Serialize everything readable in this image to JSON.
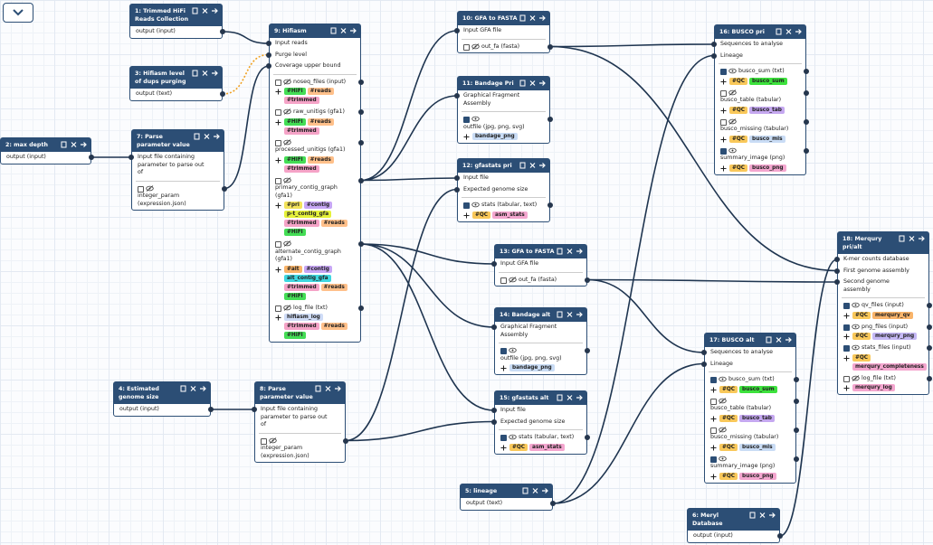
{
  "nodes": [
    {
      "title": "1: Trimmed HiFi Reads Collection",
      "inputs": [],
      "outputs": [
        {
          "label": "output (input)"
        }
      ]
    },
    {
      "title": "2: max depth",
      "inputs": [],
      "outputs": [
        {
          "label": "output (input)"
        }
      ]
    },
    {
      "title": "3: Hifiasm level of dups purging",
      "inputs": [],
      "outputs": [
        {
          "label": "output (text)"
        }
      ]
    },
    {
      "title": "4: Estimated genome size",
      "inputs": [],
      "outputs": [
        {
          "label": "output (input)"
        }
      ]
    },
    {
      "title": "5: lineage",
      "inputs": [],
      "outputs": [
        {
          "label": "output (text)"
        }
      ]
    },
    {
      "title": "6: Meryl Database",
      "inputs": [],
      "outputs": [
        {
          "label": "output (input)"
        }
      ]
    },
    {
      "title": "7: Parse parameter value",
      "inputs": [
        "Input file containing parameter to parse out of"
      ],
      "outputs": [
        {
          "label": "integer_param (expression.json)",
          "checked": false
        }
      ]
    },
    {
      "title": "8: Parse parameter value",
      "inputs": [
        "Input file containing parameter to parse out of"
      ],
      "outputs": [
        {
          "label": "integer_param (expression.json)",
          "checked": false
        }
      ]
    },
    {
      "title": "9: Hifiasm",
      "inputs": [
        "Input reads",
        "Purge level",
        "Coverage upper bound"
      ],
      "outputs": [
        {
          "label": "noseq_files (input)",
          "checked": false,
          "tags": [
            {
              "text": "#HiFi",
              "color": "#44dd55"
            },
            {
              "text": "#reads",
              "color": "#ffc08a"
            },
            {
              "text": "#trimmed",
              "color": "#f5a3c7"
            }
          ]
        },
        {
          "label": "raw_unitigs (gfa1)",
          "checked": false,
          "tags": [
            {
              "text": "#HiFi",
              "color": "#44dd55"
            },
            {
              "text": "#reads",
              "color": "#ffc08a"
            },
            {
              "text": "#trimmed",
              "color": "#f5a3c7"
            }
          ]
        },
        {
          "label": "processed_unitigs (gfa1)",
          "checked": false,
          "tags": [
            {
              "text": "#HiFi",
              "color": "#44dd55"
            },
            {
              "text": "#reads",
              "color": "#ffc08a"
            },
            {
              "text": "#trimmed",
              "color": "#f5a3c7"
            }
          ]
        },
        {
          "label": "primary_contig_graph (gfa1)",
          "checked": false,
          "tags": [
            {
              "text": "#pri",
              "color": "#f3e35a"
            },
            {
              "text": "#contig",
              "color": "#c7a6f5"
            },
            {
              "text": "p-t_contig_gfa",
              "color": "#e6f23a"
            },
            {
              "text": "#trimmed",
              "color": "#f5a3c7"
            },
            {
              "text": "#reads",
              "color": "#ffc08a"
            },
            {
              "text": "#HiFi",
              "color": "#44dd55"
            }
          ]
        },
        {
          "label": "alternate_contig_graph (gfa1)",
          "checked": false,
          "tags": [
            {
              "text": "#alt",
              "color": "#f9b46a"
            },
            {
              "text": "#contig",
              "color": "#c7a6f5"
            },
            {
              "text": "alt_contig_gfa",
              "color": "#3fd7e0"
            },
            {
              "text": "#trimmed",
              "color": "#f5a3c7"
            },
            {
              "text": "#reads",
              "color": "#ffc08a"
            },
            {
              "text": "#HiFi",
              "color": "#44dd55"
            }
          ]
        },
        {
          "label": "log_file (txt)",
          "checked": false,
          "tags": [
            {
              "text": "hifiasm_log",
              "color": "#cfdcf7"
            },
            {
              "text": "#trimmed",
              "color": "#f5a3c7"
            },
            {
              "text": "#reads",
              "color": "#ffc08a"
            },
            {
              "text": "#HiFi",
              "color": "#44dd55"
            }
          ]
        }
      ]
    },
    {
      "title": "10: GFA to FASTA",
      "inputs": [
        "Input GFA file"
      ],
      "outputs": [
        {
          "label": "out_fa (fasta)",
          "checked": false
        }
      ]
    },
    {
      "title": "11: Bandage Pri",
      "inputs": [
        "Graphical Fragment Assembly"
      ],
      "outputs": [
        {
          "label": "outfile (jpg, png, svg)",
          "checked": true,
          "tags": [
            {
              "text": "bandage_png",
              "color": "#c9dcf5"
            }
          ]
        }
      ]
    },
    {
      "title": "12: gfastats pri",
      "inputs": [
        "Input file",
        "Expected genome size"
      ],
      "outputs": [
        {
          "label": "stats (tabular, text)",
          "checked": true,
          "tags": [
            {
              "text": "#QC",
              "color": "#f9c85a"
            },
            {
              "text": "asm_stats",
              "color": "#f4a6cf"
            }
          ]
        }
      ]
    },
    {
      "title": "13: GFA to FASTA",
      "inputs": [
        "Input GFA file"
      ],
      "outputs": [
        {
          "label": "out_fa (fasta)",
          "checked": false
        }
      ]
    },
    {
      "title": "14: Bandage alt",
      "inputs": [
        "Graphical Fragment Assembly"
      ],
      "outputs": [
        {
          "label": "outfile (jpg, png, svg)",
          "checked": true,
          "tags": [
            {
              "text": "bandage_png",
              "color": "#c9dcf5"
            }
          ]
        }
      ]
    },
    {
      "title": "15: gfastats alt",
      "inputs": [
        "Input file",
        "Expected genome size"
      ],
      "outputs": [
        {
          "label": "stats (tabular, text)",
          "checked": true,
          "tags": [
            {
              "text": "#QC",
              "color": "#f9c85a"
            },
            {
              "text": "asm_stats",
              "color": "#f4a6cf"
            }
          ]
        }
      ]
    },
    {
      "title": "16: BUSCO pri",
      "inputs": [
        "Sequences to analyse",
        "Lineage"
      ],
      "outputs": [
        {
          "label": "busco_sum (txt)",
          "checked": true,
          "tags": [
            {
              "text": "#QC",
              "color": "#f9c85a"
            },
            {
              "text": "busco_sum",
              "color": "#3de23d"
            }
          ]
        },
        {
          "label": "busco_table (tabular)",
          "checked": false,
          "tags": [
            {
              "text": "#QC",
              "color": "#f9c85a"
            },
            {
              "text": "busco_tab",
              "color": "#c5a8f0"
            }
          ]
        },
        {
          "label": "busco_missing (tabular)",
          "checked": false,
          "tags": [
            {
              "text": "#QC",
              "color": "#f9c85a"
            },
            {
              "text": "busco_mis",
              "color": "#c9dcf5"
            }
          ]
        },
        {
          "label": "summary_image (png)",
          "checked": true,
          "tags": [
            {
              "text": "#QC",
              "color": "#f9c85a"
            },
            {
              "text": "busco_png",
              "color": "#f4a6cf"
            }
          ]
        }
      ]
    },
    {
      "title": "17: BUSCO alt",
      "inputs": [
        "Sequences to analyse",
        "Lineage"
      ],
      "outputs": [
        {
          "label": "busco_sum (txt)",
          "checked": true,
          "tags": [
            {
              "text": "#QC",
              "color": "#f9c85a"
            },
            {
              "text": "busco_sum",
              "color": "#3de23d"
            }
          ]
        },
        {
          "label": "busco_table (tabular)",
          "checked": false,
          "tags": [
            {
              "text": "#QC",
              "color": "#f9c85a"
            },
            {
              "text": "busco_tab",
              "color": "#c5a8f0"
            }
          ]
        },
        {
          "label": "busco_missing (tabular)",
          "checked": false,
          "tags": [
            {
              "text": "#QC",
              "color": "#f9c85a"
            },
            {
              "text": "busco_mis",
              "color": "#c9dcf5"
            }
          ]
        },
        {
          "label": "summary_image (png)",
          "checked": true,
          "tags": [
            {
              "text": "#QC",
              "color": "#f9c85a"
            },
            {
              "text": "busco_png",
              "color": "#f4a6cf"
            }
          ]
        }
      ]
    },
    {
      "title": "18: Merqury pri/alt",
      "inputs": [
        "K-mer counts database",
        "First genome assembly",
        "Second genome assembly"
      ],
      "outputs": [
        {
          "label": "qv_files (input)",
          "checked": true,
          "tags": [
            {
              "text": "#QC",
              "color": "#f9c85a"
            },
            {
              "text": "merqury_qv",
              "color": "#f9b46a"
            }
          ]
        },
        {
          "label": "png_files (input)",
          "checked": true,
          "tags": [
            {
              "text": "#QC",
              "color": "#f9c85a"
            },
            {
              "text": "merqury_png",
              "color": "#c5b8f5"
            }
          ]
        },
        {
          "label": "stats_files (input)",
          "checked": true,
          "tags": [
            {
              "text": "#QC",
              "color": "#f9c85a"
            },
            {
              "text": "merqury_completeness",
              "color": "#f4a6cf"
            }
          ]
        },
        {
          "label": "log_file (txt)",
          "checked": false,
          "tags": [
            {
              "text": "merqury_log",
              "color": "#f4a6cf"
            }
          ]
        }
      ]
    }
  ]
}
